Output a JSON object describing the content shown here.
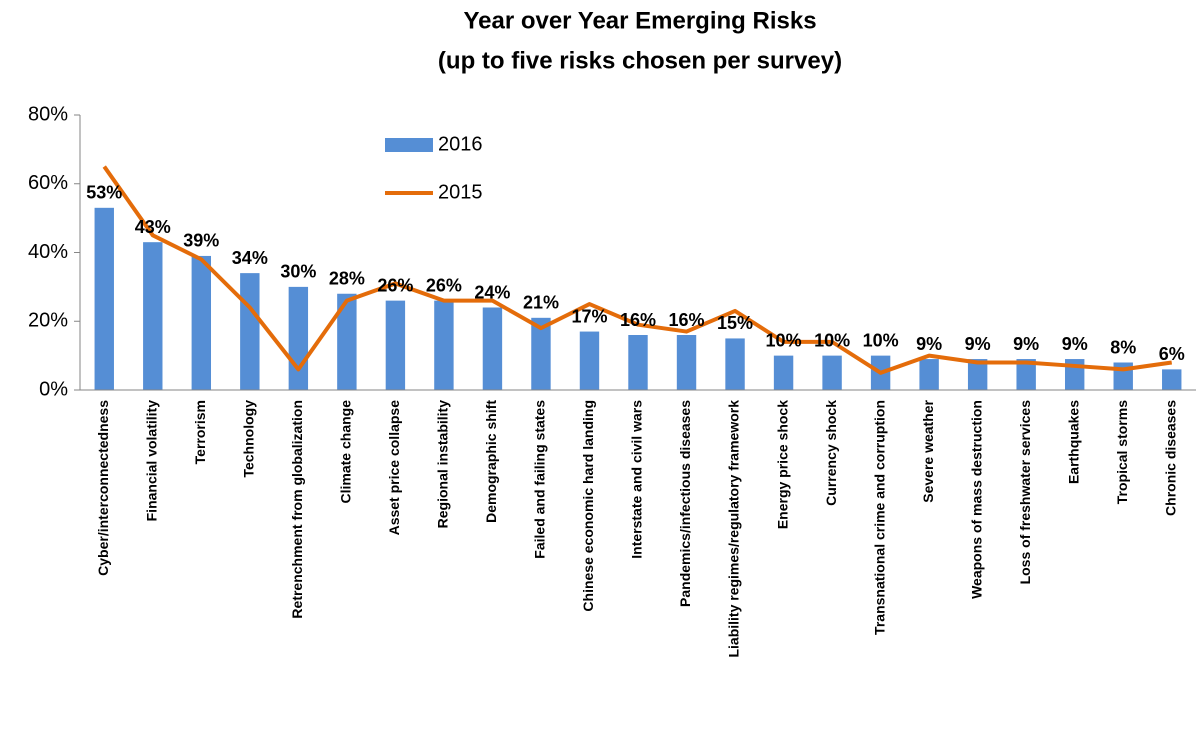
{
  "chart_data": {
    "type": "bar_line",
    "title": "Year over Year Emerging Risks",
    "subtitle": "(up to five risks chosen per survey)",
    "categories": [
      "Cyber/interconnectedness",
      "Financial volatility",
      "Terrorism",
      "Technology",
      "Retrenchment from globalization",
      "Climate change",
      "Asset price collapse",
      "Regional instability",
      "Demographic shift",
      "Failed and failing states",
      "Chinese economic hard landing",
      "Interstate and civil wars",
      "Pandemics/infectious diseases",
      "Liability regimes/regulatory framework",
      "Energy price shock",
      "Currency shock",
      "Transnational crime and corruption",
      "Severe weather",
      "Weapons of mass destruction",
      "Loss of freshwater services",
      "Earthquakes",
      "Tropical storms",
      "Chronic diseases"
    ],
    "series": [
      {
        "name": "2016",
        "type": "bar",
        "color": "#558ed5",
        "values": [
          53,
          43,
          39,
          34,
          30,
          28,
          26,
          26,
          24,
          21,
          17,
          16,
          16,
          15,
          10,
          10,
          10,
          9,
          9,
          9,
          9,
          8,
          6
        ],
        "value_labels": [
          "53%",
          "43%",
          "39%",
          "34%",
          "30%",
          "28%",
          "26%",
          "26%",
          "24%",
          "21%",
          "17%",
          "16%",
          "16%",
          "15%",
          "10%",
          "10%",
          "10%",
          "9%",
          "9%",
          "9%",
          "9%",
          "8%",
          "6%"
        ]
      },
      {
        "name": "2015",
        "type": "line",
        "color": "#e46c0a",
        "values": [
          65,
          45,
          38,
          24,
          6,
          26,
          31,
          26,
          26,
          18,
          25,
          19,
          17,
          23,
          14,
          14,
          5,
          10,
          8,
          8,
          7,
          6,
          8
        ]
      }
    ],
    "ylim": [
      0,
      80
    ],
    "yticks": [
      {
        "value": 0,
        "label": "0%"
      },
      {
        "value": 20,
        "label": "20%"
      },
      {
        "value": 40,
        "label": "40%"
      },
      {
        "value": 60,
        "label": "60%"
      },
      {
        "value": 80,
        "label": "80%"
      }
    ]
  }
}
